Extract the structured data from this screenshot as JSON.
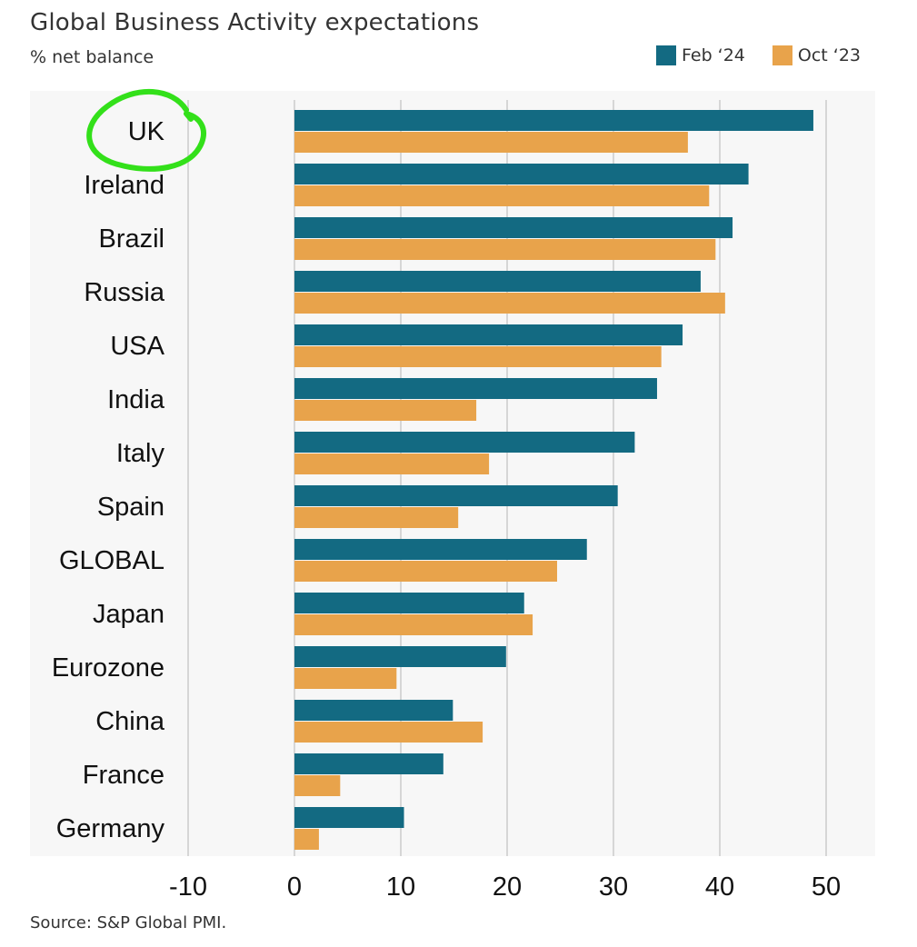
{
  "title": "Global Business Activity expectations",
  "subtitle": "% net balance",
  "source": "Source: S&P Global PMI.",
  "colors": {
    "feb24": "#136a82",
    "oct23": "#e8a34b",
    "grid": "#d6d6d6",
    "panel": "#f7f7f7",
    "highlight": "#33e01a"
  },
  "legend": [
    {
      "label": "Feb ‘24",
      "color": "#136a82"
    },
    {
      "label": "Oct ‘23",
      "color": "#e8a34b"
    }
  ],
  "chart_data": {
    "type": "bar",
    "orientation": "horizontal",
    "categories": [
      "UK",
      "Ireland",
      "Brazil",
      "Russia",
      "USA",
      "India",
      "Italy",
      "Spain",
      "GLOBAL",
      "Japan",
      "Eurozone",
      "China",
      "France",
      "Germany"
    ],
    "series": [
      {
        "name": "Feb ‘24",
        "values": [
          48.8,
          42.7,
          41.2,
          38.2,
          36.5,
          34.1,
          32.0,
          30.4,
          27.5,
          21.6,
          19.9,
          14.9,
          14.0,
          10.3
        ]
      },
      {
        "name": "Oct ‘23",
        "values": [
          37.0,
          39.0,
          39.6,
          40.5,
          34.5,
          17.1,
          18.3,
          15.4,
          24.7,
          22.4,
          9.6,
          17.7,
          4.3,
          2.3
        ]
      }
    ],
    "xlim": [
      -10,
      50
    ],
    "xticks": [
      "-10",
      "0",
      "10",
      "20",
      "30",
      "40",
      "50"
    ],
    "grid": true,
    "legend_position": "top-right",
    "highlighted_category": "UK"
  }
}
